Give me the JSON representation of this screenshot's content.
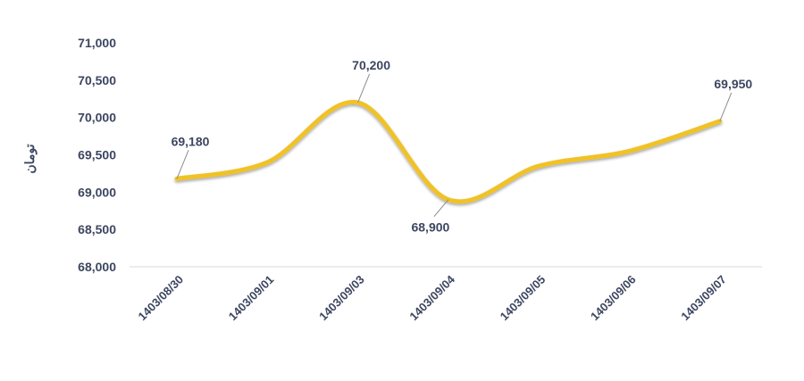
{
  "chart_data": {
    "type": "line",
    "title": "",
    "xlabel": "",
    "ylabel": "تومان",
    "categories": [
      "1403/08/30",
      "1403/09/01",
      "1403/09/03",
      "1403/09/04",
      "1403/09/05",
      "1403/09/06",
      "1403/09/07"
    ],
    "series": [
      {
        "values": [
          69180,
          69400,
          70200,
          68900,
          69350,
          69550,
          69950
        ],
        "color": "#f0c228"
      }
    ],
    "data_labels": [
      {
        "index": 0,
        "text": "69,180",
        "position": "above"
      },
      {
        "index": 2,
        "text": "70,200",
        "position": "above"
      },
      {
        "index": 3,
        "text": "68,900",
        "position": "below"
      },
      {
        "index": 6,
        "text": "69,950",
        "position": "above"
      }
    ],
    "ylim": [
      68000,
      71000
    ],
    "yticks": [
      68000,
      68500,
      69000,
      69500,
      70000,
      70500,
      71000
    ],
    "ytick_labels": [
      "68,000",
      "68,500",
      "69,000",
      "69,500",
      "70,000",
      "70,500",
      "71,000"
    ],
    "grid": false,
    "legend": "none"
  }
}
